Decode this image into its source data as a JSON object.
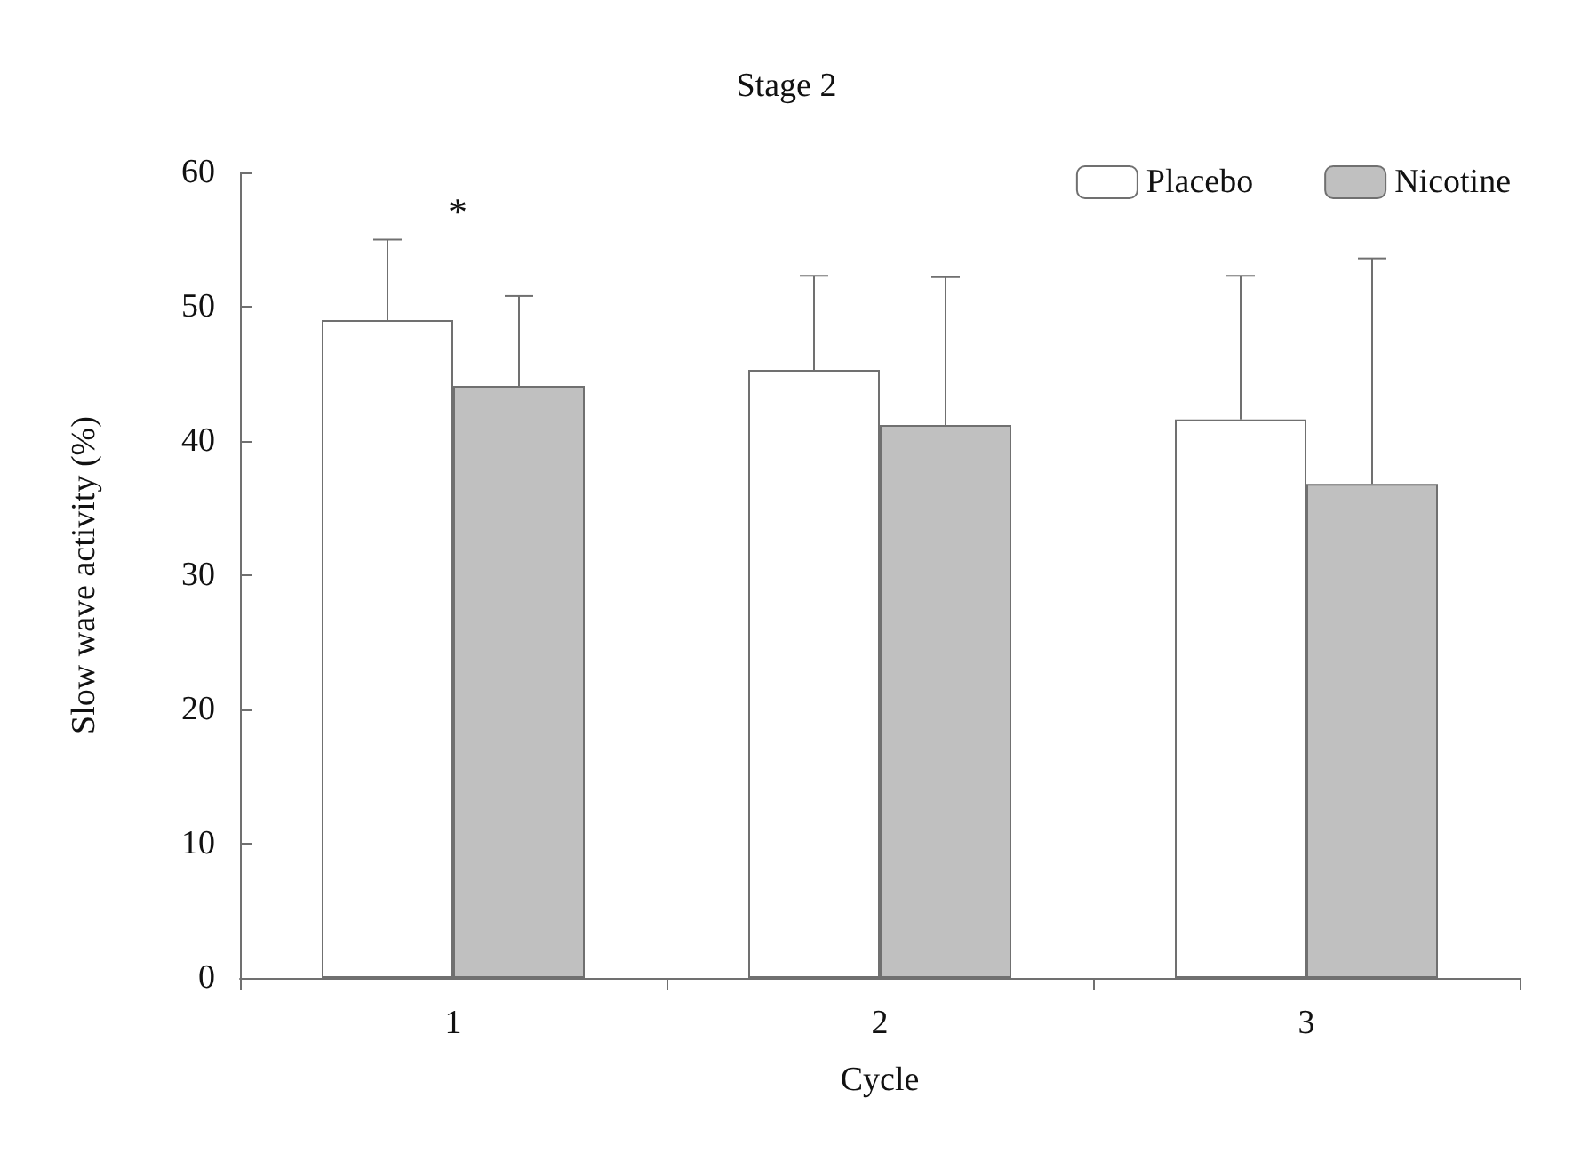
{
  "chart_data": {
    "type": "bar",
    "title": "Stage 2",
    "xlabel": "Cycle",
    "ylabel": "Slow wave activity (%)",
    "categories": [
      "1",
      "2",
      "3"
    ],
    "series": [
      {
        "name": "Placebo",
        "color": "#ffffff",
        "values": [
          49.0,
          45.3,
          41.6
        ],
        "errors": [
          [
            49.0,
            55.0
          ],
          [
            45.3,
            52.3
          ],
          [
            41.6,
            52.3
          ]
        ]
      },
      {
        "name": "Nicotine",
        "color": "#c0c0c0",
        "values": [
          44.1,
          41.2,
          36.8
        ],
        "errors": [
          [
            44.1,
            50.8
          ],
          [
            41.2,
            52.2
          ],
          [
            36.8,
            53.6
          ]
        ]
      }
    ],
    "ylim": [
      0,
      60
    ],
    "yticks": [
      0,
      10,
      20,
      30,
      40,
      50,
      60
    ],
    "grid": false,
    "legend": "top right",
    "annotations": [
      "*"
    ]
  }
}
